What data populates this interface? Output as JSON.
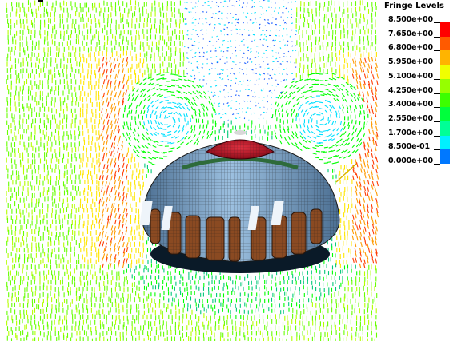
{
  "legend": {
    "title": "Fringe Levels",
    "levels": [
      {
        "label": "8.500e+00",
        "color": "#ff0000"
      },
      {
        "label": "7.650e+00",
        "color": "#ff5a00"
      },
      {
        "label": "6.800e+00",
        "color": "#ffb400"
      },
      {
        "label": "5.950e+00",
        "color": "#f0ff00"
      },
      {
        "label": "5.100e+00",
        "color": "#96ff00"
      },
      {
        "label": "4.250e+00",
        "color": "#3cff00"
      },
      {
        "label": "3.400e+00",
        "color": "#00ff3c"
      },
      {
        "label": "2.550e+00",
        "color": "#00ff96"
      },
      {
        "label": "1.700e+00",
        "color": "#00f0ff"
      },
      {
        "label": "8.500e-01",
        "color": "#0078ff"
      },
      {
        "label": "0.000e+00",
        "color": "#0000ff"
      }
    ]
  },
  "scene": {
    "subject": "parachute-canopy-fluid-simulation",
    "canopy_colors": {
      "crown": "#c8102e",
      "body": "#6e9ac2",
      "panels": "#8a4a22",
      "ring": "#2e6b3a",
      "mesh_lines": "#1a1a1a"
    },
    "vector_colors": [
      "#00ff00",
      "#66ff00",
      "#b4ff00",
      "#ffe600",
      "#ff9a00",
      "#ff3a00",
      "#00e0ff",
      "#1a5cff",
      "#00c878"
    ]
  }
}
